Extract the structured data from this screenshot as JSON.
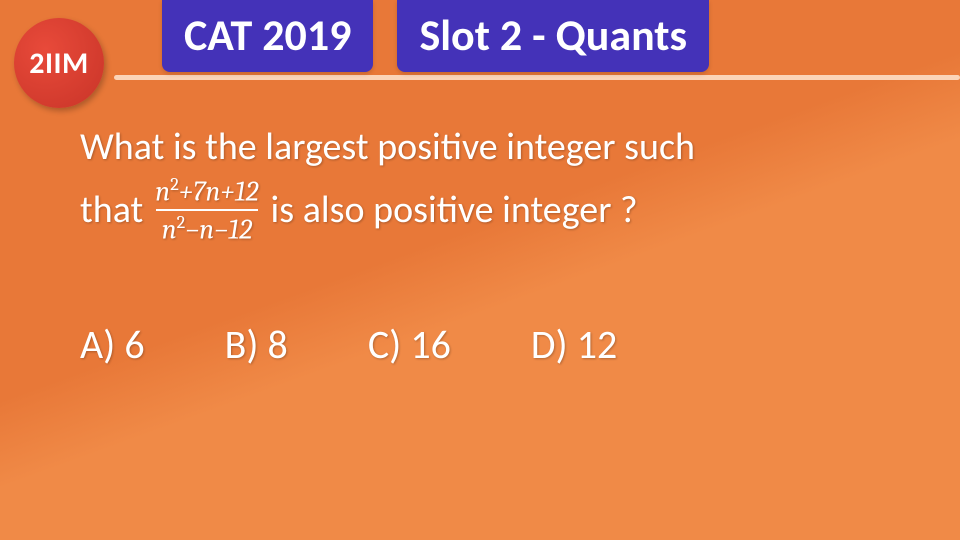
{
  "logo": {
    "text": "2IIM",
    "bg_color": "#d63a2c",
    "text_color": "#ffffff"
  },
  "header": {
    "badge1": "CAT 2019",
    "badge2": "Slot 2 - Quants",
    "badge_bg": "#4432b8",
    "badge_color": "#ffffff",
    "underline_color": "#fbd4b8"
  },
  "background": {
    "color_top": "#e87838",
    "color_bottom": "#f08a47"
  },
  "question": {
    "line1": "What is the largest positive integer such",
    "line2_pre": "that",
    "fraction": {
      "numerator_parts": [
        "n",
        "2",
        "+",
        "7n",
        "+",
        "12"
      ],
      "denominator_parts": [
        "n",
        "2",
        "−",
        "n",
        "−",
        "12"
      ],
      "numerator_text": "n² + 7n + 12",
      "denominator_text": "n² − n − 12"
    },
    "line2_post": " is also positive integer ?",
    "text_color": "#ffffff",
    "font_size_pt": 38
  },
  "options": {
    "items": [
      {
        "label": "A)",
        "value": "6"
      },
      {
        "label": "B)",
        "value": "8"
      },
      {
        "label": "C)",
        "value": "16"
      },
      {
        "label": "D)",
        "value": "12"
      }
    ],
    "font_size_pt": 40
  }
}
